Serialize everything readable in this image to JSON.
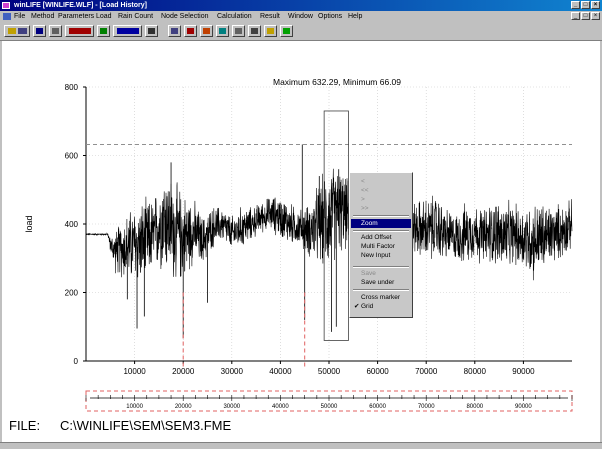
{
  "window": {
    "title": "winLIFE [WINLIFE.WLF] - [Load History]"
  },
  "menu": [
    "File",
    "Method",
    "Parameters",
    "Load",
    "Rain Count",
    "Node Selection",
    "Calculation",
    "Result",
    "Window",
    "Options",
    "Help"
  ],
  "toolbar_icons": [
    "open-icon",
    "save-icon",
    "print-icon",
    "load-spectrum-icon",
    "rainflow-icon",
    "histogram-icon",
    "sequence-icon",
    "node-icon",
    "fe-model-icon",
    "chart-color-icon",
    "calc-icon",
    "result-icon",
    "settings-icon",
    "help-icon",
    "lifetime-icon"
  ],
  "chart_header": "Maximum  632.29,    Minimum   66.09",
  "file_label": "FILE:",
  "file_path": "C:\\WINLIFE\\SEM\\SEM3.FME",
  "context_menu": {
    "items": [
      {
        "label": "<",
        "enabled": false,
        "selected": false,
        "checked": false
      },
      {
        "label": "<<",
        "enabled": false,
        "selected": false,
        "checked": false
      },
      {
        "label": ">",
        "enabled": false,
        "selected": false,
        "checked": false
      },
      {
        "label": ">>",
        "enabled": false,
        "selected": false,
        "checked": false
      },
      {
        "label": "Zoom",
        "enabled": true,
        "selected": true,
        "checked": false
      },
      {
        "label": "Add Offset",
        "enabled": true,
        "selected": false,
        "checked": false
      },
      {
        "label": "Multi Factor",
        "enabled": true,
        "selected": false,
        "checked": false
      },
      {
        "label": "New Input",
        "enabled": true,
        "selected": false,
        "checked": false
      },
      {
        "label": "Save",
        "enabled": false,
        "selected": false,
        "checked": false
      },
      {
        "label": "Save under",
        "enabled": true,
        "selected": false,
        "checked": false
      },
      {
        "label": "Cross marker",
        "enabled": true,
        "selected": false,
        "checked": false
      },
      {
        "label": "Grid",
        "enabled": true,
        "selected": false,
        "checked": true
      }
    ],
    "check_mark": "✔"
  },
  "chart_data": {
    "type": "line",
    "ylabel": "load",
    "xlabel": "",
    "xlim": [
      0,
      100000
    ],
    "ylim": [
      0,
      800
    ],
    "x_ticks": [
      10000,
      20000,
      30000,
      40000,
      50000,
      60000,
      70000,
      80000,
      90000
    ],
    "y_ticks": [
      0,
      200,
      400,
      600,
      800
    ],
    "maximum": 632.29,
    "minimum": 66.09,
    "series_color": "#000000",
    "marker_color": "#e06060",
    "grid": true,
    "reference_lines": [
      {
        "y": 632.29,
        "style": "dashed"
      }
    ],
    "markers_x": [
      20000,
      45000
    ],
    "zoom_window": {
      "x0": 49000,
      "x1": 54000,
      "y0": 60,
      "y1": 730
    },
    "envelope": [
      {
        "x": 0,
        "y": 370,
        "a": 3
      },
      {
        "x": 4500,
        "y": 370,
        "a": 3
      },
      {
        "x": 5000,
        "y": 340,
        "a": 25
      },
      {
        "x": 6000,
        "y": 320,
        "a": 70
      },
      {
        "x": 8000,
        "y": 330,
        "a": 110
      },
      {
        "x": 10000,
        "y": 340,
        "a": 130
      },
      {
        "x": 12000,
        "y": 345,
        "a": 140
      },
      {
        "x": 14000,
        "y": 370,
        "a": 120
      },
      {
        "x": 16000,
        "y": 420,
        "a": 170
      },
      {
        "x": 18000,
        "y": 380,
        "a": 170
      },
      {
        "x": 20000,
        "y": 360,
        "a": 150
      },
      {
        "x": 22000,
        "y": 380,
        "a": 110
      },
      {
        "x": 24000,
        "y": 350,
        "a": 80
      },
      {
        "x": 26000,
        "y": 390,
        "a": 70
      },
      {
        "x": 28000,
        "y": 400,
        "a": 60
      },
      {
        "x": 30000,
        "y": 370,
        "a": 60
      },
      {
        "x": 32000,
        "y": 390,
        "a": 70
      },
      {
        "x": 34000,
        "y": 400,
        "a": 55
      },
      {
        "x": 36000,
        "y": 420,
        "a": 50
      },
      {
        "x": 38000,
        "y": 430,
        "a": 60
      },
      {
        "x": 40000,
        "y": 420,
        "a": 70
      },
      {
        "x": 42000,
        "y": 400,
        "a": 70
      },
      {
        "x": 44000,
        "y": 390,
        "a": 60
      },
      {
        "x": 46000,
        "y": 380,
        "a": 90
      },
      {
        "x": 48000,
        "y": 400,
        "a": 140
      },
      {
        "x": 50000,
        "y": 420,
        "a": 170
      },
      {
        "x": 52000,
        "y": 440,
        "a": 150
      },
      {
        "x": 54000,
        "y": 430,
        "a": 110
      },
      {
        "x": 56000,
        "y": 400,
        "a": 70
      },
      {
        "x": 58000,
        "y": 380,
        "a": 50
      },
      {
        "x": 60000,
        "y": 390,
        "a": 50
      },
      {
        "x": 62000,
        "y": 400,
        "a": 60
      },
      {
        "x": 64000,
        "y": 390,
        "a": 50
      },
      {
        "x": 66000,
        "y": 380,
        "a": 70
      },
      {
        "x": 68000,
        "y": 390,
        "a": 90
      },
      {
        "x": 70000,
        "y": 380,
        "a": 110
      },
      {
        "x": 72000,
        "y": 390,
        "a": 110
      },
      {
        "x": 74000,
        "y": 370,
        "a": 90
      },
      {
        "x": 76000,
        "y": 360,
        "a": 80
      },
      {
        "x": 78000,
        "y": 370,
        "a": 100
      },
      {
        "x": 80000,
        "y": 380,
        "a": 90
      },
      {
        "x": 82000,
        "y": 360,
        "a": 100
      },
      {
        "x": 84000,
        "y": 380,
        "a": 110
      },
      {
        "x": 86000,
        "y": 360,
        "a": 120
      },
      {
        "x": 88000,
        "y": 370,
        "a": 100
      },
      {
        "x": 90000,
        "y": 360,
        "a": 110
      },
      {
        "x": 92000,
        "y": 350,
        "a": 130
      },
      {
        "x": 94000,
        "y": 360,
        "a": 120
      },
      {
        "x": 96000,
        "y": 370,
        "a": 100
      },
      {
        "x": 98000,
        "y": 380,
        "a": 90
      },
      {
        "x": 100000,
        "y": 400,
        "a": 80
      }
    ],
    "spikes": [
      {
        "x": 10500,
        "y": 95
      },
      {
        "x": 17500,
        "y": 580
      },
      {
        "x": 20000,
        "y": 66.09
      },
      {
        "x": 25000,
        "y": 170
      },
      {
        "x": 44500,
        "y": 632.29
      },
      {
        "x": 45000,
        "y": 120
      },
      {
        "x": 50500,
        "y": 85
      },
      {
        "x": 51500,
        "y": 100
      },
      {
        "x": 52000,
        "y": 560
      },
      {
        "x": 48000,
        "y": 540
      },
      {
        "x": 12000,
        "y": 130
      },
      {
        "x": 8500,
        "y": 180
      }
    ]
  }
}
